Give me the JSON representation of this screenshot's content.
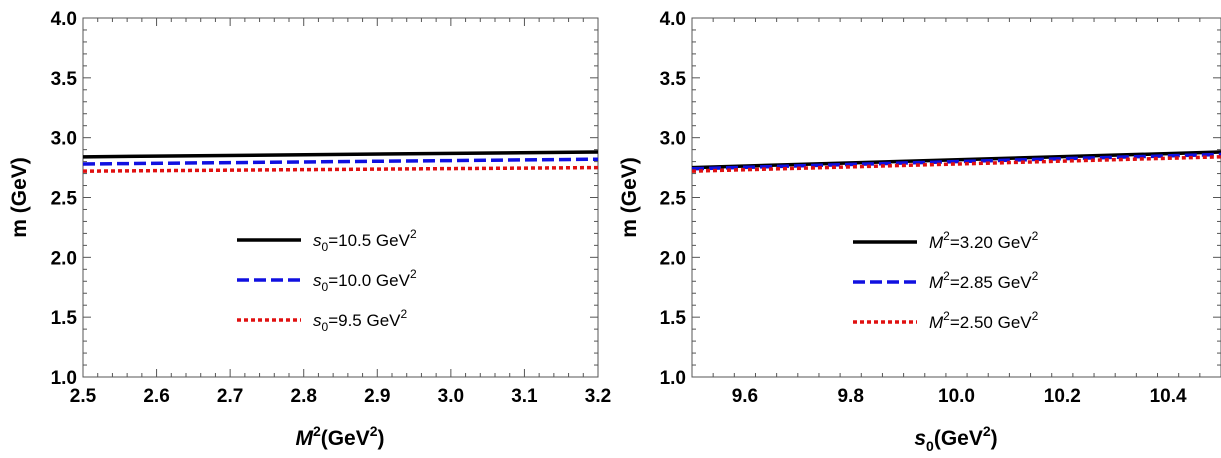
{
  "chart_data": [
    {
      "type": "line",
      "xlabel": {
        "base": "M",
        "sup": "2",
        "rest": "(GeV",
        "sup2": "2",
        "close": ")"
      },
      "ylabel": "m (GeV)",
      "xlim": [
        2.5,
        3.2
      ],
      "ylim": [
        1.0,
        4.0
      ],
      "xticks": [
        "2.5",
        "2.6",
        "2.7",
        "2.8",
        "2.9",
        "3.0",
        "3.1",
        "3.2"
      ],
      "yticks": [
        "1.0",
        "1.5",
        "2.0",
        "2.5",
        "3.0",
        "3.5",
        "4.0"
      ],
      "legend_position": "center",
      "series": [
        {
          "label": {
            "var": "s",
            "sub": "0",
            "value": "=10.5 GeV",
            "sup": "2"
          },
          "color": "#000000",
          "dash": "solid",
          "x": [
            2.5,
            3.2
          ],
          "y": [
            2.84,
            2.88
          ]
        },
        {
          "label": {
            "var": "s",
            "sub": "0",
            "value": "=10.0 GeV",
            "sup": "2"
          },
          "color": "#1010e0",
          "dash": "dashed",
          "x": [
            2.5,
            3.2
          ],
          "y": [
            2.78,
            2.82
          ]
        },
        {
          "label": {
            "var": "s",
            "sub": "0",
            "value": "=9.5 GeV",
            "sup": "2"
          },
          "color": "#e01010",
          "dash": "dotted",
          "x": [
            2.5,
            3.2
          ],
          "y": [
            2.72,
            2.75
          ]
        }
      ]
    },
    {
      "type": "line",
      "xlabel": {
        "base": "s",
        "sub": "0",
        "rest": "(GeV",
        "sup2": "2",
        "close": ")"
      },
      "ylabel": "m (GeV)",
      "xlim": [
        9.5,
        10.5
      ],
      "ylim": [
        1.0,
        4.0
      ],
      "xticks": [
        "9.6",
        "9.8",
        "10.0",
        "10.2",
        "10.4"
      ],
      "xtick_values": [
        9.6,
        9.8,
        10.0,
        10.2,
        10.4
      ],
      "yticks": [
        "1.0",
        "1.5",
        "2.0",
        "2.5",
        "3.0",
        "3.5",
        "4.0"
      ],
      "legend_position": "center",
      "series": [
        {
          "label": {
            "var": "M",
            "sup0": "2",
            "value": "=3.20 GeV",
            "sup": "2"
          },
          "color": "#000000",
          "dash": "solid",
          "x": [
            9.5,
            10.5
          ],
          "y": [
            2.75,
            2.88
          ]
        },
        {
          "label": {
            "var": "M",
            "sup0": "2",
            "value": "=2.85 GeV",
            "sup": "2"
          },
          "color": "#1010e0",
          "dash": "dashed",
          "x": [
            9.5,
            10.5
          ],
          "y": [
            2.74,
            2.86
          ]
        },
        {
          "label": {
            "var": "M",
            "sup0": "2",
            "value": "=2.50 GeV",
            "sup": "2"
          },
          "color": "#e01010",
          "dash": "dotted",
          "x": [
            9.5,
            10.5
          ],
          "y": [
            2.72,
            2.84
          ]
        }
      ]
    }
  ]
}
